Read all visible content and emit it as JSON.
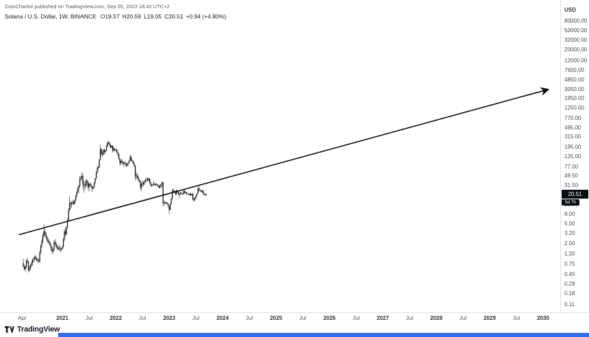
{
  "header": {
    "published": "CoinChartist published on TradingView.com, Sep 05, 2023 18:42 UTC+2",
    "symbol": "Solana / U.S. Dollar, 1W, BINANCE",
    "ohlc": {
      "open": "O19.57",
      "high": "H20.59",
      "low": "L19.05",
      "close": "C20.51",
      "change": "+0.94 (+4.80%)"
    }
  },
  "price_axis": {
    "unit": "USD",
    "ticks": [
      {
        "label": "80000.00",
        "value": 80000
      },
      {
        "label": "50000.00",
        "value": 50000
      },
      {
        "label": "32000.00",
        "value": 32000
      },
      {
        "label": "20000.00",
        "value": 20000
      },
      {
        "label": "12000.00",
        "value": 12000
      },
      {
        "label": "7600.00",
        "value": 7600
      },
      {
        "label": "4850.00",
        "value": 4850
      },
      {
        "label": "3050.00",
        "value": 3050
      },
      {
        "label": "1950.00",
        "value": 1950
      },
      {
        "label": "1250.00",
        "value": 1250
      },
      {
        "label": "770.00",
        "value": 770
      },
      {
        "label": "495.00",
        "value": 495
      },
      {
        "label": "315.00",
        "value": 315
      },
      {
        "label": "195.00",
        "value": 195
      },
      {
        "label": "125.00",
        "value": 125
      },
      {
        "label": "77.00",
        "value": 77
      },
      {
        "label": "49.50",
        "value": 49.5
      },
      {
        "label": "31.50",
        "value": 31.5
      },
      {
        "label": "12.50",
        "value": 12.5
      },
      {
        "label": "8.00",
        "value": 8
      },
      {
        "label": "5.00",
        "value": 5
      },
      {
        "label": "3.20",
        "value": 3.2
      },
      {
        "label": "2.00",
        "value": 2
      },
      {
        "label": "1.20",
        "value": 1.2
      },
      {
        "label": "0.75",
        "value": 0.75
      },
      {
        "label": "0.45",
        "value": 0.45
      },
      {
        "label": "0.29",
        "value": 0.29
      },
      {
        "label": "0.18",
        "value": 0.18
      },
      {
        "label": "0.11",
        "value": 0.11
      }
    ]
  },
  "time_axis": {
    "ticks": [
      {
        "label": "Apr",
        "t": 2020.25
      },
      {
        "label": "2021",
        "t": 2021
      },
      {
        "label": "Jul",
        "t": 2021.5
      },
      {
        "label": "2022",
        "t": 2022
      },
      {
        "label": "Jul",
        "t": 2022.5
      },
      {
        "label": "2023",
        "t": 2023
      },
      {
        "label": "Jul",
        "t": 2023.5
      },
      {
        "label": "2024",
        "t": 2024
      },
      {
        "label": "Jul",
        "t": 2024.5
      },
      {
        "label": "2025",
        "t": 2025
      },
      {
        "label": "Jul",
        "t": 2025.5
      },
      {
        "label": "2026",
        "t": 2026
      },
      {
        "label": "Jul",
        "t": 2026.5
      },
      {
        "label": "2027",
        "t": 2027
      },
      {
        "label": "Jul",
        "t": 2027.5
      },
      {
        "label": "2028",
        "t": 2028
      },
      {
        "label": "Jul",
        "t": 2028.5
      },
      {
        "label": "2029",
        "t": 2029
      },
      {
        "label": "Jul",
        "t": 2029.5
      },
      {
        "label": "2030",
        "t": 2030
      }
    ]
  },
  "price_badge": {
    "label": "20.51",
    "value": 20.51,
    "countdown": "5d 7h"
  },
  "footer": {
    "brand": "TradingView"
  },
  "colors": {
    "background": "#ffffff",
    "candle": "#111111",
    "trendline": "#0a0a0a",
    "badge_bg": "#0b0e13",
    "badge_text": "#ffffff",
    "axis_text": "#474b55",
    "separator": "#dcdfe5",
    "footer_strip": "#2e6bf0",
    "brand_text": "#131722"
  },
  "chart_data": {
    "type": "candlestick",
    "title": "Solana / U.S. Dollar",
    "timeframe": "1W",
    "exchange": "BINANCE",
    "scale": "log",
    "x_unit": "decimal_year",
    "time_start": 2020.27,
    "time_step_years": 0.019231,
    "visible_time_range": [
      2019.83,
      2030.32
    ],
    "visible_price_range": [
      0.105,
      90000
    ],
    "last_bar": {
      "open": 19.57,
      "high": 20.59,
      "low": 19.05,
      "close": 20.51,
      "change": 0.94,
      "change_pct": 4.8
    },
    "trendline": {
      "from": {
        "t": 2020.19,
        "price": 3.0
      },
      "to": {
        "t": 2030.09,
        "price": 3000
      },
      "style": "arrow"
    },
    "ohlc": [
      [
        0.79,
        0.95,
        0.63,
        0.66
      ],
      [
        0.66,
        0.72,
        0.55,
        0.58
      ],
      [
        0.58,
        0.7,
        0.51,
        0.65
      ],
      [
        0.65,
        0.92,
        0.6,
        0.88
      ],
      [
        0.88,
        1.0,
        0.77,
        0.82
      ],
      [
        0.82,
        0.85,
        0.5,
        0.55
      ],
      [
        0.55,
        0.68,
        0.52,
        0.6
      ],
      [
        0.6,
        0.74,
        0.56,
        0.7
      ],
      [
        0.7,
        0.85,
        0.65,
        0.78
      ],
      [
        0.78,
        0.95,
        0.7,
        0.9
      ],
      [
        0.9,
        1.05,
        0.8,
        0.95
      ],
      [
        0.95,
        1.1,
        0.85,
        1.02
      ],
      [
        1.02,
        1.15,
        0.9,
        0.95
      ],
      [
        0.95,
        1.05,
        0.85,
        0.9
      ],
      [
        0.9,
        1.0,
        0.8,
        0.86
      ],
      [
        0.86,
        0.95,
        0.78,
        0.83
      ],
      [
        0.83,
        1.4,
        0.8,
        1.3
      ],
      [
        1.3,
        1.9,
        1.2,
        1.75
      ],
      [
        1.75,
        2.4,
        1.6,
        2.2
      ],
      [
        2.2,
        3.2,
        2.0,
        2.9
      ],
      [
        2.9,
        4.9,
        2.6,
        3.5
      ],
      [
        3.5,
        3.9,
        2.8,
        3.1
      ],
      [
        3.1,
        3.4,
        2.5,
        2.7
      ],
      [
        2.7,
        2.9,
        2.1,
        2.3
      ],
      [
        2.3,
        2.6,
        2.0,
        2.2
      ],
      [
        2.2,
        2.4,
        1.9,
        2.0
      ],
      [
        2.0,
        2.2,
        1.7,
        1.8
      ],
      [
        1.8,
        1.95,
        1.4,
        1.5
      ],
      [
        1.5,
        1.7,
        1.2,
        1.35
      ],
      [
        1.35,
        1.6,
        1.25,
        1.5
      ],
      [
        1.5,
        2.3,
        1.4,
        2.1
      ],
      [
        2.1,
        2.4,
        1.8,
        1.95
      ],
      [
        1.95,
        2.1,
        1.6,
        1.7
      ],
      [
        1.7,
        1.85,
        1.45,
        1.55
      ],
      [
        1.55,
        1.75,
        1.4,
        1.6
      ],
      [
        1.6,
        1.9,
        1.45,
        1.51
      ],
      [
        1.51,
        1.7,
        1.3,
        1.45
      ],
      [
        1.45,
        1.6,
        1.35,
        1.52
      ],
      [
        1.52,
        1.8,
        1.48,
        1.72
      ],
      [
        1.72,
        2.6,
        1.6,
        2.4
      ],
      [
        2.4,
        3.8,
        2.2,
        3.5
      ],
      [
        3.5,
        4.2,
        2.8,
        3.1
      ],
      [
        3.1,
        4.5,
        2.9,
        4.3
      ],
      [
        4.3,
        6.5,
        4.0,
        6.0
      ],
      [
        6.0,
        10.5,
        5.8,
        9.8
      ],
      [
        9.8,
        18.5,
        9.0,
        13.5
      ],
      [
        13.5,
        15.0,
        10.0,
        12.8
      ],
      [
        12.8,
        14.5,
        11.0,
        13.6
      ],
      [
        13.6,
        15.8,
        12.5,
        14.2
      ],
      [
        14.2,
        15.0,
        12.0,
        13.0
      ],
      [
        13.0,
        16.0,
        12.6,
        15.5
      ],
      [
        15.5,
        19.8,
        14.5,
        19.0
      ],
      [
        19.0,
        24.0,
        17.5,
        23.0
      ],
      [
        23.0,
        29.0,
        21.0,
        27.5
      ],
      [
        27.5,
        32.0,
        22.0,
        31.0
      ],
      [
        31.0,
        49.0,
        28.0,
        43.0
      ],
      [
        43.0,
        49.5,
        38.0,
        46.0
      ],
      [
        46.0,
        58.3,
        41.0,
        49.0
      ],
      [
        49.0,
        55.0,
        27.0,
        33.0
      ],
      [
        33.0,
        39.0,
        22.2,
        31.0
      ],
      [
        31.0,
        36.0,
        26.0,
        30.0
      ],
      [
        30.0,
        42.0,
        29.0,
        39.0
      ],
      [
        39.0,
        41.5,
        32.0,
        37.0
      ],
      [
        37.0,
        39.0,
        26.0,
        28.5
      ],
      [
        28.5,
        35.0,
        23.5,
        33.5
      ],
      [
        33.5,
        36.0,
        30.0,
        32.0
      ],
      [
        32.0,
        34.5,
        28.0,
        29.5
      ],
      [
        29.5,
        31.0,
        23.0,
        27.0
      ],
      [
        27.0,
        30.0,
        25.0,
        29.0
      ],
      [
        29.0,
        37.0,
        28.0,
        36.0
      ],
      [
        36.0,
        45.0,
        34.0,
        44.0
      ],
      [
        44.0,
        62.0,
        42.0,
        58.0
      ],
      [
        58.0,
        78.0,
        55.0,
        72.0
      ],
      [
        72.0,
        80.0,
        65.0,
        75.0
      ],
      [
        75.0,
        110.0,
        72.0,
        108.0
      ],
      [
        108.0,
        216.0,
        105.0,
        178.0
      ],
      [
        178.0,
        185.0,
        130.0,
        140.0
      ],
      [
        140.0,
        160.0,
        120.0,
        135.0
      ],
      [
        135.0,
        175.0,
        130.0,
        170.0
      ],
      [
        170.0,
        180.0,
        140.0,
        155.0
      ],
      [
        155.0,
        170.0,
        145.0,
        165.0
      ],
      [
        165.0,
        220.0,
        160.0,
        200.0
      ],
      [
        200.0,
        250.0,
        190.0,
        245.0
      ],
      [
        245.0,
        260.0,
        220.0,
        237.0
      ],
      [
        237.0,
        245.0,
        200.0,
        210.0
      ],
      [
        210.0,
        225.0,
        180.0,
        190.0
      ],
      [
        190.0,
        212.0,
        183.0,
        205.0
      ],
      [
        205.0,
        215.0,
        150.0,
        165.0
      ],
      [
        165.0,
        195.0,
        155.0,
        180.0
      ],
      [
        180.0,
        185.0,
        160.0,
        172.0
      ],
      [
        172.0,
        180.0,
        158.0,
        170.0
      ],
      [
        170,
        178,
        145,
        150
      ],
      [
        150,
        160,
        125,
        138
      ],
      [
        138,
        145,
        105,
        112
      ],
      [
        112,
        115,
        80,
        90
      ],
      [
        90,
        105,
        83,
        100
      ],
      [
        100,
        112,
        90,
        95
      ],
      [
        95,
        100,
        82,
        88
      ],
      [
        88,
        95,
        75,
        92
      ],
      [
        92,
        100,
        85,
        88
      ],
      [
        88,
        92,
        75,
        80
      ],
      [
        80,
        90,
        76,
        88
      ],
      [
        88,
        95,
        78,
        92
      ],
      [
        92,
        105,
        88,
        102
      ],
      [
        102,
        136,
        100,
        123
      ],
      [
        123,
        125,
        98,
        102
      ],
      [
        102,
        108,
        92,
        98
      ],
      [
        98,
        102,
        84,
        90
      ],
      [
        90,
        92,
        75,
        80
      ],
      [
        80,
        82,
        40,
        48
      ],
      [
        48,
        58,
        42,
        50
      ],
      [
        50,
        55,
        42,
        46
      ],
      [
        46,
        50,
        38,
        40
      ],
      [
        40,
        42,
        36,
        38
      ],
      [
        38,
        40,
        25,
        28
      ],
      [
        28,
        36,
        24,
        34
      ],
      [
        34,
        40,
        30,
        33
      ],
      [
        33,
        38,
        30,
        36
      ],
      [
        36,
        40,
        32,
        38
      ],
      [
        38,
        44,
        35,
        41
      ],
      [
        41,
        45,
        38,
        42
      ],
      [
        42,
        46,
        38,
        40
      ],
      [
        40,
        45,
        38,
        43
      ],
      [
        43,
        44,
        34,
        36
      ],
      [
        36,
        38,
        30,
        31
      ],
      [
        31,
        33,
        29,
        32
      ],
      [
        32,
        34,
        30,
        33
      ],
      [
        33,
        39,
        31,
        34
      ],
      [
        34,
        35,
        30,
        32
      ],
      [
        32,
        35,
        31,
        33
      ],
      [
        33,
        34,
        31,
        32
      ],
      [
        32,
        33,
        29,
        30
      ],
      [
        30,
        31,
        27,
        28
      ],
      [
        28,
        33,
        27,
        32
      ],
      [
        32,
        34,
        29,
        33
      ],
      [
        33,
        38,
        28,
        36
      ],
      [
        36,
        37,
        11.7,
        13.5
      ],
      [
        13.5,
        15,
        12,
        14
      ],
      [
        14,
        14.5,
        12.8,
        13.4
      ],
      [
        13.4,
        14.4,
        12.9,
        13.8
      ],
      [
        13.8,
        14.2,
        12.5,
        13
      ],
      [
        13,
        13.3,
        11,
        11.6
      ],
      [
        11.6,
        12,
        8,
        9.8
      ],
      [
        9.8,
        13.5,
        9.6,
        13
      ],
      [
        13,
        17.2,
        12.5,
        16.6
      ],
      [
        16.6,
        26.5,
        16,
        24
      ],
      [
        24,
        27.1,
        22,
        24.5
      ],
      [
        24.5,
        25.5,
        22.5,
        23.5
      ],
      [
        23.5,
        24,
        19.8,
        20.5
      ],
      [
        20.5,
        26,
        20,
        24.5
      ],
      [
        24.5,
        25,
        22,
        22.5
      ],
      [
        22.5,
        23.5,
        19.5,
        20.5
      ],
      [
        20.5,
        22.5,
        17,
        21.5
      ],
      [
        21.5,
        23,
        20,
        22
      ],
      [
        22,
        22.5,
        20,
        21
      ],
      [
        21,
        21.5,
        19.8,
        20.5
      ],
      [
        20.5,
        25.1,
        20,
        24
      ],
      [
        24,
        25,
        21.5,
        22
      ],
      [
        22,
        23.5,
        20.5,
        22.5
      ],
      [
        22.5,
        23,
        20.5,
        21
      ],
      [
        21,
        21.5,
        19.5,
        20.5
      ],
      [
        20.5,
        21.5,
        19.8,
        20
      ],
      [
        20,
        21.5,
        19,
        21
      ],
      [
        21,
        21.8,
        19.2,
        19.8
      ],
      [
        19.8,
        21.2,
        19,
        21
      ],
      [
        21,
        21.5,
        15.3,
        16
      ],
      [
        16,
        17.5,
        14.5,
        15.5
      ],
      [
        15.5,
        18,
        15,
        17.5
      ],
      [
        17.5,
        19.5,
        16.5,
        19
      ],
      [
        19,
        22,
        18.5,
        21.5
      ],
      [
        21.5,
        28.5,
        21,
        27
      ],
      [
        27,
        32.13,
        24,
        25
      ],
      [
        25,
        26.5,
        23,
        24.5
      ],
      [
        24.5,
        25,
        22.5,
        23.5
      ],
      [
        23.5,
        26,
        22,
        24.5
      ],
      [
        24.5,
        25,
        20,
        21
      ],
      [
        21,
        22,
        19.5,
        20.5
      ],
      [
        20.5,
        21.5,
        19.3,
        19.57
      ],
      [
        19.57,
        20.59,
        19.05,
        20.51
      ]
    ]
  }
}
